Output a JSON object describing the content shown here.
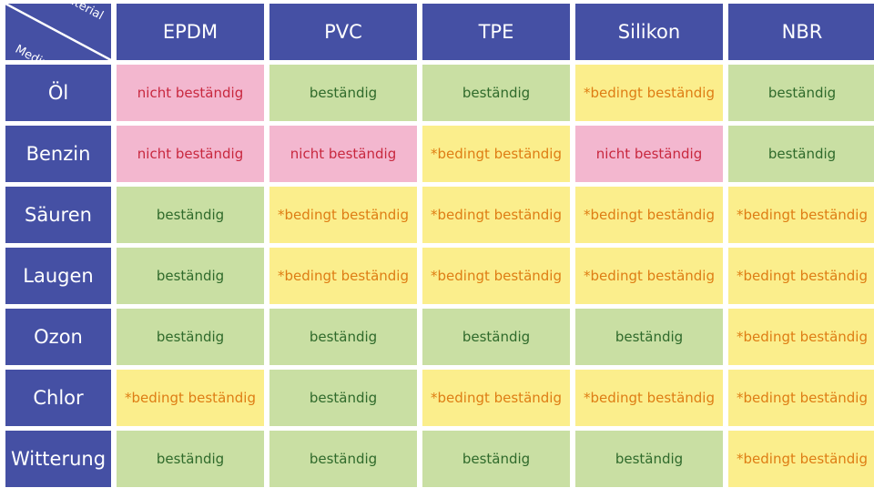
{
  "table": {
    "corner": {
      "material": "Material",
      "medium": "Medium"
    },
    "columns": [
      "EPDM",
      "PVC",
      "TPE",
      "Silikon",
      "NBR"
    ],
    "rows": [
      {
        "medium": "Öl",
        "cells": [
          {
            "text": "nicht beständig",
            "status": "no"
          },
          {
            "text": "beständig",
            "status": "ok"
          },
          {
            "text": "beständig",
            "status": "ok"
          },
          {
            "text": "*bedingt beständig",
            "status": "cond"
          },
          {
            "text": "beständig",
            "status": "ok"
          }
        ]
      },
      {
        "medium": "Benzin",
        "cells": [
          {
            "text": "nicht beständig",
            "status": "no"
          },
          {
            "text": "nicht beständig",
            "status": "no"
          },
          {
            "text": "*bedingt beständig",
            "status": "cond"
          },
          {
            "text": "nicht beständig",
            "status": "no"
          },
          {
            "text": "beständig",
            "status": "ok"
          }
        ]
      },
      {
        "medium": "Säuren",
        "cells": [
          {
            "text": "beständig",
            "status": "ok"
          },
          {
            "text": "*bedingt beständig",
            "status": "cond"
          },
          {
            "text": "*bedingt beständig",
            "status": "cond"
          },
          {
            "text": "*bedingt beständig",
            "status": "cond"
          },
          {
            "text": "*bedingt beständig",
            "status": "cond"
          }
        ]
      },
      {
        "medium": "Laugen",
        "cells": [
          {
            "text": "beständig",
            "status": "ok"
          },
          {
            "text": "*bedingt beständig",
            "status": "cond"
          },
          {
            "text": "*bedingt beständig",
            "status": "cond"
          },
          {
            "text": "*bedingt beständig",
            "status": "cond"
          },
          {
            "text": "*bedingt beständig",
            "status": "cond"
          }
        ]
      },
      {
        "medium": "Ozon",
        "cells": [
          {
            "text": "beständig",
            "status": "ok"
          },
          {
            "text": "beständig",
            "status": "ok"
          },
          {
            "text": "beständig",
            "status": "ok"
          },
          {
            "text": "beständig",
            "status": "ok"
          },
          {
            "text": "*bedingt beständig",
            "status": "cond"
          }
        ]
      },
      {
        "medium": "Chlor",
        "cells": [
          {
            "text": "*bedingt beständig",
            "status": "cond"
          },
          {
            "text": "beständig",
            "status": "ok"
          },
          {
            "text": "*bedingt beständig",
            "status": "cond"
          },
          {
            "text": "*bedingt beständig",
            "status": "cond"
          },
          {
            "text": "*bedingt beständig",
            "status": "cond"
          }
        ]
      },
      {
        "medium": "Witterung",
        "cells": [
          {
            "text": "beständig",
            "status": "ok"
          },
          {
            "text": "beständig",
            "status": "ok"
          },
          {
            "text": "beständig",
            "status": "ok"
          },
          {
            "text": "beständig",
            "status": "ok"
          },
          {
            "text": "*bedingt beständig",
            "status": "cond"
          }
        ]
      }
    ]
  },
  "colors": {
    "header_bg": "#4550a4",
    "ok_bg": "#c9dfa3",
    "ok_text": "#2f6a2b",
    "cond_bg": "#fbee8c",
    "cond_text": "#de7d14",
    "no_bg": "#f3b7cf",
    "no_text": "#c8283f"
  }
}
